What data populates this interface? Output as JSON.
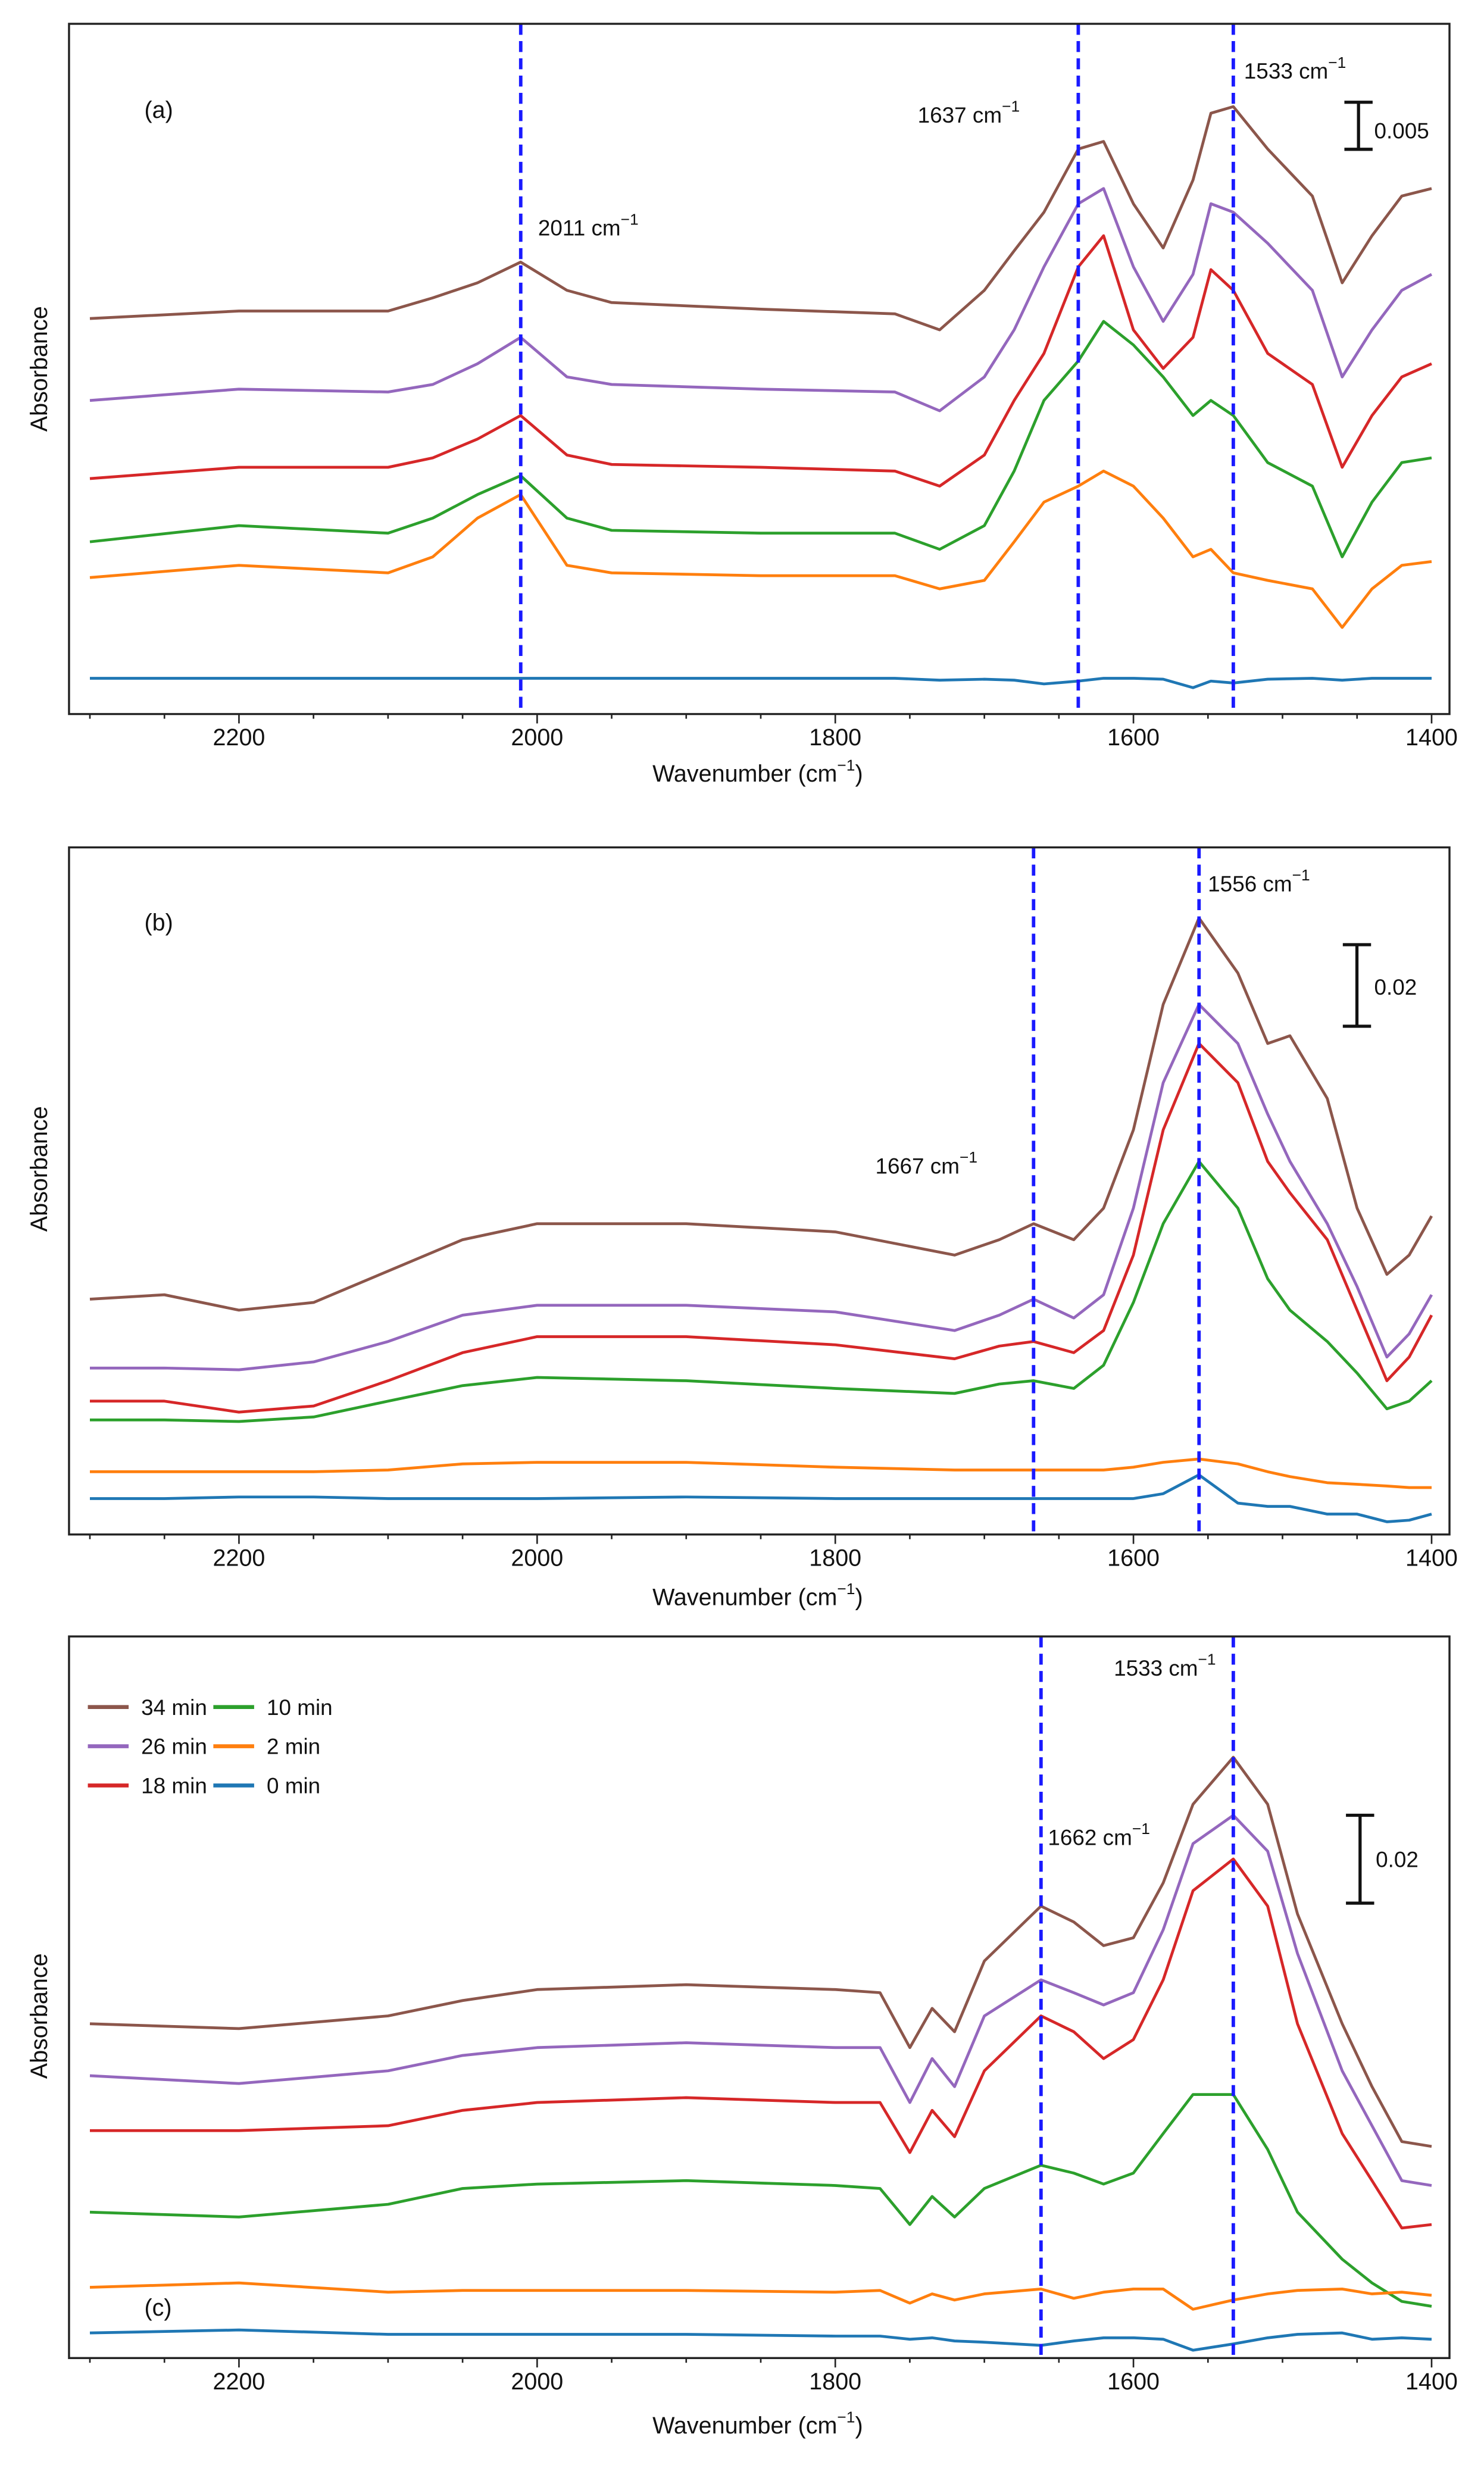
{
  "chart_data": [
    {
      "type": "line",
      "panel_label": "(a)",
      "xlabel": "Wavenumber (cm",
      "xlabel_sup": "−1",
      "xlabel_end": ")",
      "ylabel": "Absorbance",
      "xlim": [
        2314,
        1388
      ],
      "ylim": [
        0,
        0.0733
      ],
      "x_reversed": true,
      "xticks": [
        2200,
        2000,
        1800,
        1600,
        1400
      ],
      "xtick_labels": [
        "2200",
        "2000",
        "1800",
        "1600",
        "1400"
      ],
      "grid": false,
      "scale_bar": {
        "value": 0.005,
        "label": "0.005"
      },
      "markers": [
        {
          "x": 2011,
          "label": "2011 cm",
          "sup": "−1"
        },
        {
          "x": 1637,
          "label": "1637 cm",
          "sup": "−1"
        },
        {
          "x": 1533,
          "label": "1533 cm",
          "sup": "−1"
        }
      ],
      "x": [
        2300,
        2200,
        2100,
        2070,
        2040,
        2011,
        1980,
        1950,
        1850,
        1760,
        1730,
        1700,
        1680,
        1660,
        1637,
        1620,
        1600,
        1580,
        1560,
        1548,
        1533,
        1510,
        1480,
        1460,
        1440,
        1420,
        1400
      ],
      "series": [
        {
          "name": "34 min",
          "color": "#8c564b",
          "values": [
            0.042,
            0.0428,
            0.0428,
            0.0442,
            0.0458,
            0.048,
            0.045,
            0.0437,
            0.043,
            0.0425,
            0.0408,
            0.045,
            0.0492,
            0.0533,
            0.06,
            0.0608,
            0.0542,
            0.0495,
            0.0567,
            0.0638,
            0.0645,
            0.06,
            0.055,
            0.0458,
            0.0508,
            0.055,
            0.0558
          ]
        },
        {
          "name": "26 min",
          "color": "#9467bd",
          "values": [
            0.0333,
            0.0345,
            0.0342,
            0.035,
            0.0372,
            0.04,
            0.0358,
            0.035,
            0.0345,
            0.0342,
            0.0322,
            0.0358,
            0.0408,
            0.0475,
            0.0542,
            0.0558,
            0.0475,
            0.0417,
            0.0467,
            0.0542,
            0.0533,
            0.05,
            0.045,
            0.0358,
            0.0408,
            0.045,
            0.0467
          ]
        },
        {
          "name": "18 min",
          "color": "#d62728",
          "values": [
            0.025,
            0.0262,
            0.0262,
            0.0272,
            0.0292,
            0.0317,
            0.0275,
            0.0265,
            0.0262,
            0.0258,
            0.0242,
            0.0275,
            0.0333,
            0.0383,
            0.0475,
            0.0508,
            0.0408,
            0.0367,
            0.04,
            0.0472,
            0.045,
            0.0383,
            0.035,
            0.0262,
            0.0317,
            0.0358,
            0.0372
          ]
        },
        {
          "name": "10 min",
          "color": "#2ca02c",
          "values": [
            0.0183,
            0.02,
            0.0192,
            0.0208,
            0.0233,
            0.0253,
            0.0208,
            0.0195,
            0.0192,
            0.0192,
            0.0175,
            0.02,
            0.0258,
            0.0333,
            0.0375,
            0.0417,
            0.0392,
            0.0358,
            0.0317,
            0.0333,
            0.0317,
            0.0267,
            0.0242,
            0.0167,
            0.0225,
            0.0267,
            0.0272
          ]
        },
        {
          "name": "2 min",
          "color": "#ff7f0e",
          "values": [
            0.0145,
            0.0158,
            0.015,
            0.0167,
            0.0208,
            0.0233,
            0.0158,
            0.015,
            0.0147,
            0.0147,
            0.0133,
            0.0142,
            0.0183,
            0.0225,
            0.0242,
            0.0258,
            0.0242,
            0.0208,
            0.0167,
            0.0175,
            0.015,
            0.0142,
            0.0133,
            0.0092,
            0.0133,
            0.0158,
            0.0162
          ]
        },
        {
          "name": "0 min",
          "color": "#1f77b4",
          "values": [
            0.0038,
            0.0038,
            0.0038,
            0.0038,
            0.0038,
            0.0038,
            0.0038,
            0.0038,
            0.0038,
            0.0038,
            0.0036,
            0.0037,
            0.0036,
            0.0032,
            0.0035,
            0.0038,
            0.0038,
            0.0037,
            0.0028,
            0.0035,
            0.0033,
            0.0037,
            0.0038,
            0.0036,
            0.0038,
            0.0038,
            0.0038
          ]
        }
      ]
    },
    {
      "type": "line",
      "panel_label": "(b)",
      "xlabel": "Wavenumber (cm",
      "xlabel_sup": "−1",
      "xlabel_end": ")",
      "ylabel": "Absorbance",
      "xlim": [
        2314,
        1388
      ],
      "ylim": [
        0,
        0.1685
      ],
      "x_reversed": true,
      "xticks": [
        2200,
        2000,
        1800,
        1600,
        1400
      ],
      "xtick_labels": [
        "2200",
        "2000",
        "1800",
        "1600",
        "1400"
      ],
      "grid": false,
      "scale_bar": {
        "value": 0.02,
        "label": "0.02"
      },
      "markers": [
        {
          "x": 1667,
          "label": "1667 cm",
          "sup": "−1"
        },
        {
          "x": 1556,
          "label": "1556 cm",
          "sup": "−1"
        }
      ],
      "x": [
        2300,
        2250,
        2200,
        2150,
        2100,
        2050,
        2000,
        1900,
        1800,
        1720,
        1690,
        1667,
        1640,
        1620,
        1600,
        1580,
        1556,
        1530,
        1510,
        1495,
        1470,
        1450,
        1430,
        1415,
        1400
      ],
      "series": [
        {
          "name": "34 min",
          "color": "#8c564b",
          "values": [
            0.0577,
            0.0588,
            0.055,
            0.0569,
            0.0646,
            0.0723,
            0.0762,
            0.0762,
            0.0742,
            0.0685,
            0.0723,
            0.0762,
            0.0723,
            0.08,
            0.0992,
            0.13,
            0.1512,
            0.1377,
            0.1204,
            0.1223,
            0.1069,
            0.08,
            0.0638,
            0.0685,
            0.0781
          ]
        },
        {
          "name": "26 min",
          "color": "#9467bd",
          "values": [
            0.0408,
            0.0408,
            0.0404,
            0.0423,
            0.0473,
            0.0538,
            0.0562,
            0.0562,
            0.0546,
            0.05,
            0.0538,
            0.0577,
            0.0531,
            0.0588,
            0.08,
            0.1108,
            0.13,
            0.1204,
            0.1031,
            0.0915,
            0.0762,
            0.0608,
            0.0435,
            0.0492,
            0.0588
          ]
        },
        {
          "name": "18 min",
          "color": "#d62728",
          "values": [
            0.0327,
            0.0327,
            0.03,
            0.0315,
            0.0377,
            0.0446,
            0.0485,
            0.0485,
            0.0465,
            0.0431,
            0.0462,
            0.0473,
            0.0446,
            0.05,
            0.0685,
            0.0992,
            0.1204,
            0.1108,
            0.0915,
            0.0838,
            0.0723,
            0.055,
            0.0377,
            0.0435,
            0.0538
          ]
        },
        {
          "name": "10 min",
          "color": "#2ca02c",
          "values": [
            0.0281,
            0.0281,
            0.0277,
            0.0288,
            0.0327,
            0.0365,
            0.0385,
            0.0377,
            0.0358,
            0.0346,
            0.0369,
            0.0377,
            0.0358,
            0.0415,
            0.0569,
            0.0762,
            0.0915,
            0.08,
            0.0627,
            0.055,
            0.0473,
            0.0396,
            0.0308,
            0.0327,
            0.0377
          ]
        },
        {
          "name": "2 min",
          "color": "#ff7f0e",
          "values": [
            0.0154,
            0.0154,
            0.0154,
            0.0154,
            0.0158,
            0.0173,
            0.0177,
            0.0177,
            0.0165,
            0.0158,
            0.0158,
            0.0158,
            0.0158,
            0.0158,
            0.0165,
            0.0177,
            0.0185,
            0.0173,
            0.0154,
            0.0142,
            0.0127,
            0.0123,
            0.0119,
            0.0115,
            0.0115
          ]
        },
        {
          "name": "0 min",
          "color": "#1f77b4",
          "values": [
            0.0088,
            0.0088,
            0.0092,
            0.0092,
            0.0088,
            0.0088,
            0.0088,
            0.0092,
            0.0088,
            0.0088,
            0.0088,
            0.0088,
            0.0088,
            0.0088,
            0.0088,
            0.01,
            0.0146,
            0.0077,
            0.0069,
            0.0069,
            0.005,
            0.005,
            0.0031,
            0.0035,
            0.005
          ]
        }
      ]
    },
    {
      "type": "line",
      "panel_label": "(c)",
      "xlabel": "Wavenumber (cm",
      "xlabel_sup": "−1",
      "xlabel_end": ")",
      "ylabel": "Absorbance",
      "xlim": [
        2314,
        1388
      ],
      "ylim": [
        0,
        0.1643
      ],
      "x_reversed": true,
      "xticks": [
        2200,
        2000,
        1800,
        1600,
        1400
      ],
      "xtick_labels": [
        "2200",
        "2000",
        "1800",
        "1600",
        "1400"
      ],
      "grid": false,
      "legend_position": "top-left",
      "scale_bar": {
        "value": 0.02,
        "label": "0.02"
      },
      "markers": [
        {
          "x": 1662,
          "label": "1662 cm",
          "sup": "−1"
        },
        {
          "x": 1533,
          "label": "1533 cm",
          "sup": "−1"
        }
      ],
      "x": [
        2300,
        2200,
        2100,
        2050,
        2000,
        1900,
        1800,
        1770,
        1750,
        1735,
        1720,
        1700,
        1662,
        1640,
        1620,
        1600,
        1580,
        1560,
        1533,
        1510,
        1490,
        1460,
        1440,
        1420,
        1400
      ],
      "series": [
        {
          "name": "34 min",
          "color": "#8c564b",
          "values": [
            0.0761,
            0.075,
            0.0779,
            0.0814,
            0.0839,
            0.085,
            0.0839,
            0.0832,
            0.0707,
            0.0796,
            0.0743,
            0.0904,
            0.1029,
            0.0993,
            0.0939,
            0.0957,
            0.1082,
            0.1261,
            0.1368,
            0.1261,
            0.1011,
            0.0761,
            0.0618,
            0.0493,
            0.0482
          ]
        },
        {
          "name": "26 min",
          "color": "#9467bd",
          "values": [
            0.0643,
            0.0625,
            0.0654,
            0.0689,
            0.0707,
            0.0718,
            0.0707,
            0.0707,
            0.0582,
            0.0682,
            0.0618,
            0.0779,
            0.0861,
            0.0832,
            0.0804,
            0.0832,
            0.0975,
            0.1171,
            0.1236,
            0.1154,
            0.0921,
            0.0654,
            0.0529,
            0.0404,
            0.0393
          ]
        },
        {
          "name": "18 min",
          "color": "#d62728",
          "values": [
            0.0518,
            0.0518,
            0.0529,
            0.0564,
            0.0582,
            0.0593,
            0.0582,
            0.0582,
            0.0468,
            0.0564,
            0.0504,
            0.0654,
            0.0779,
            0.0743,
            0.0682,
            0.0725,
            0.0861,
            0.1064,
            0.1136,
            0.1029,
            0.0761,
            0.0511,
            0.0404,
            0.0296,
            0.0304
          ]
        },
        {
          "name": "10 min",
          "color": "#2ca02c",
          "values": [
            0.0332,
            0.0321,
            0.035,
            0.0386,
            0.0396,
            0.0404,
            0.0393,
            0.0386,
            0.0304,
            0.0368,
            0.0321,
            0.0386,
            0.0439,
            0.0421,
            0.0396,
            0.0421,
            0.0511,
            0.06,
            0.06,
            0.0475,
            0.0332,
            0.0225,
            0.0171,
            0.0129,
            0.0118
          ]
        },
        {
          "name": "2 min",
          "color": "#ff7f0e",
          "values": [
            0.0161,
            0.0171,
            0.015,
            0.0154,
            0.0154,
            0.0154,
            0.015,
            0.0154,
            0.0125,
            0.0146,
            0.0132,
            0.0146,
            0.0157,
            0.0136,
            0.015,
            0.0157,
            0.0157,
            0.0111,
            0.0132,
            0.0146,
            0.0154,
            0.0157,
            0.0146,
            0.015,
            0.0143
          ]
        },
        {
          "name": "0 min",
          "color": "#1f77b4",
          "values": [
            0.0057,
            0.0064,
            0.0054,
            0.0054,
            0.0054,
            0.0054,
            0.005,
            0.005,
            0.0043,
            0.0046,
            0.0039,
            0.0036,
            0.0029,
            0.0039,
            0.0046,
            0.0046,
            0.0043,
            0.0018,
            0.0032,
            0.0046,
            0.0054,
            0.0057,
            0.0043,
            0.0046,
            0.0043
          ]
        }
      ],
      "legend": [
        {
          "label": "34 min",
          "color": "#8c564b"
        },
        {
          "label": "10 min",
          "color": "#2ca02c"
        },
        {
          "label": "26 min",
          "color": "#9467bd"
        },
        {
          "label": "2 min",
          "color": "#ff7f0e"
        },
        {
          "label": "18 min",
          "color": "#d62728"
        },
        {
          "label": "0 min",
          "color": "#1f77b4"
        }
      ]
    }
  ],
  "marker_line_color": "#1a1aff"
}
